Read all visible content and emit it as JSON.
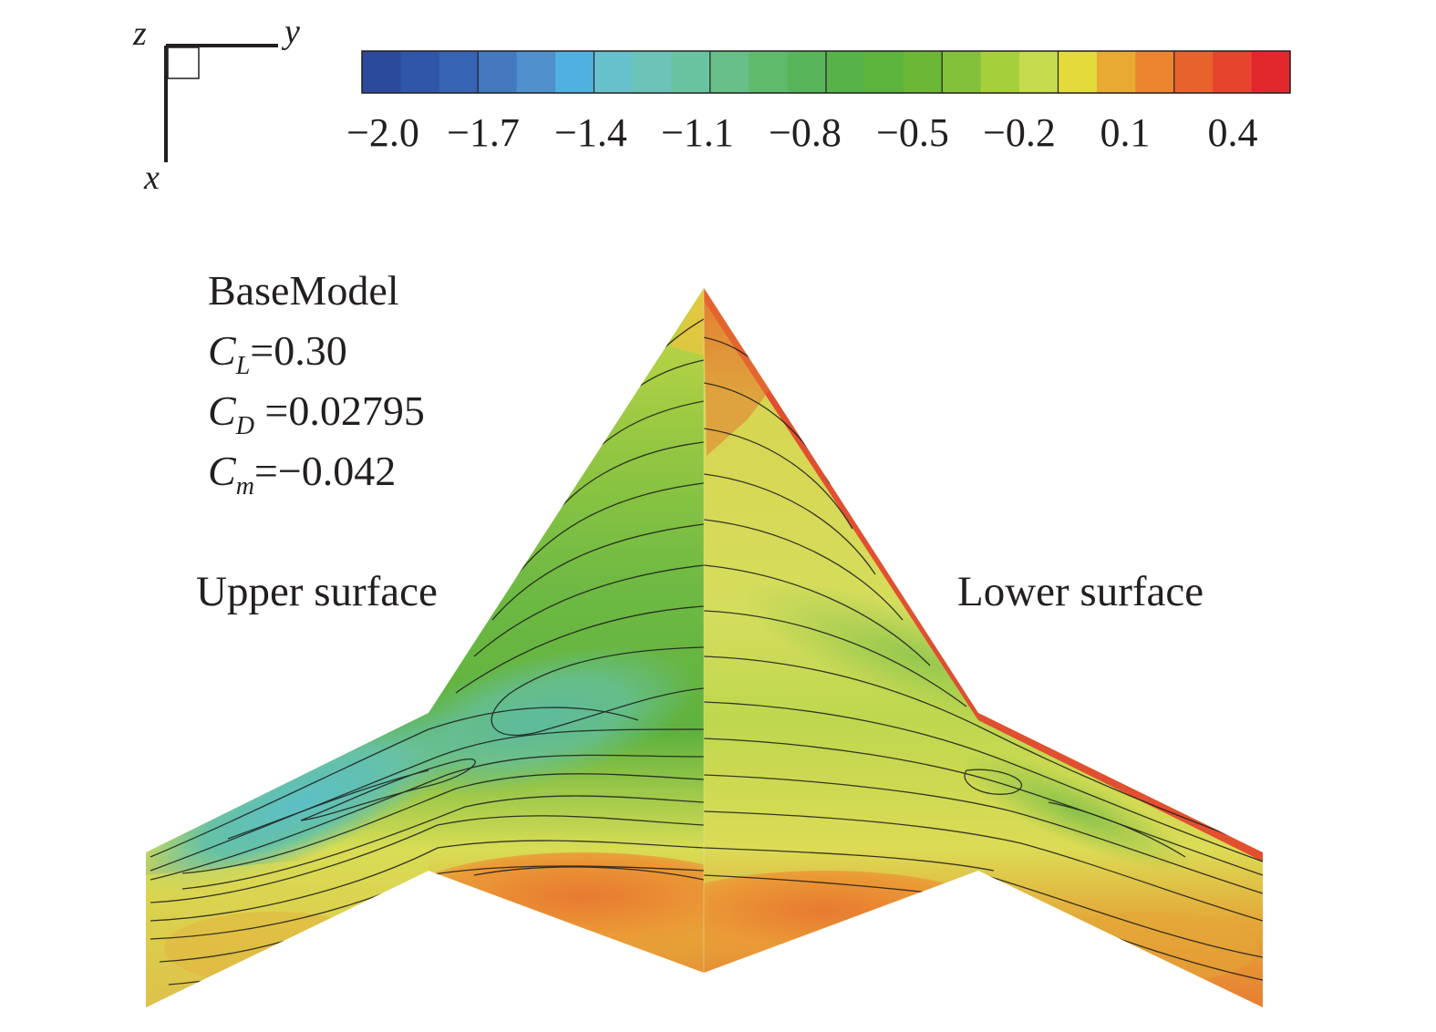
{
  "axes": {
    "x": "x",
    "y": "y",
    "z": "z"
  },
  "colorbar": {
    "colors": [
      "#2b4a9c",
      "#2f56a8",
      "#3664b2",
      "#4379bf",
      "#4f90cd",
      "#4fb1e0",
      "#67c1cd",
      "#6cc4b9",
      "#6ac3a0",
      "#68bf88",
      "#5fba6c",
      "#58b55a",
      "#58b24a",
      "#5cb43d",
      "#6ab835",
      "#84c13a",
      "#a6cf3c",
      "#c6dc4c",
      "#e3db3b",
      "#e8aa33",
      "#ec8530",
      "#e8632c",
      "#e5452d",
      "#e2282d"
    ],
    "major_boundaries": [
      3,
      6,
      9,
      12,
      15,
      18,
      21
    ],
    "tick_labels": [
      "−2.0",
      "−1.7",
      "−1.4",
      "−1.1",
      "−0.8",
      "−0.5",
      "−0.2",
      "0.1",
      "0.4"
    ]
  },
  "info": {
    "model": "BaseModel",
    "cl_symbol": "C",
    "cl_sub": "L",
    "cl_value": "=0.30",
    "cd_symbol": "C",
    "cd_sub": "D",
    "cd_value": " =0.02795",
    "cm_symbol": "C",
    "cm_sub": "m",
    "cm_value": "=−0.042"
  },
  "labels": {
    "upper": "Upper surface",
    "lower": "Lower surface"
  },
  "surface_colors": {
    "red": "#e0322c",
    "orange": "#ec8a33",
    "yellow": "#dde05a",
    "light_green": "#a9cf45",
    "green": "#62b33e",
    "teal": "#67c2a4",
    "cyan": "#5ebfc7"
  }
}
